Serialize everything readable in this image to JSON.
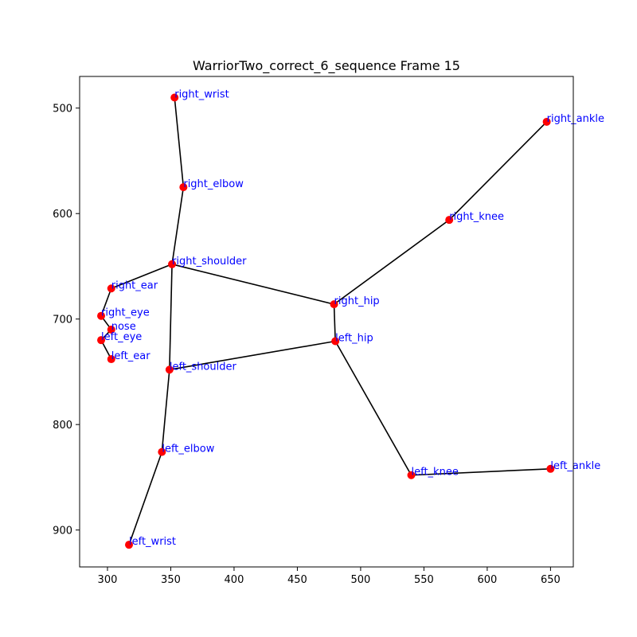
{
  "chart_data": {
    "type": "scatter",
    "title": "WarriorTwo_correct_6_sequence Frame 15",
    "xlabel": "",
    "ylabel": "",
    "xlim": [
      278,
      668
    ],
    "ylim": [
      935,
      470
    ],
    "y_inverted": true,
    "grid": false,
    "x_ticks": [
      300,
      350,
      400,
      450,
      500,
      550,
      600,
      650
    ],
    "y_ticks": [
      500,
      600,
      700,
      800,
      900
    ],
    "point_color": "#ff0000",
    "line_color": "#000000",
    "label_color": "#0000ff",
    "points": [
      {
        "name": "right_wrist",
        "x": 353,
        "y": 490
      },
      {
        "name": "right_ankle",
        "x": 647,
        "y": 513
      },
      {
        "name": "right_elbow",
        "x": 360,
        "y": 575
      },
      {
        "name": "right_knee",
        "x": 570,
        "y": 606
      },
      {
        "name": "right_shoulder",
        "x": 351,
        "y": 648
      },
      {
        "name": "right_ear",
        "x": 303,
        "y": 671
      },
      {
        "name": "right_hip",
        "x": 479,
        "y": 686
      },
      {
        "name": "right_eye",
        "x": 295,
        "y": 697
      },
      {
        "name": "nose",
        "x": 303,
        "y": 710
      },
      {
        "name": "left_eye",
        "x": 295,
        "y": 720
      },
      {
        "name": "left_hip",
        "x": 480,
        "y": 721
      },
      {
        "name": "left_ear",
        "x": 303,
        "y": 738
      },
      {
        "name": "left_shoulder",
        "x": 349,
        "y": 748
      },
      {
        "name": "left_elbow",
        "x": 343,
        "y": 826
      },
      {
        "name": "left_knee",
        "x": 540,
        "y": 848
      },
      {
        "name": "left_ankle",
        "x": 650,
        "y": 842
      },
      {
        "name": "left_wrist",
        "x": 317,
        "y": 914
      }
    ],
    "connections": [
      [
        "right_wrist",
        "right_elbow"
      ],
      [
        "right_elbow",
        "right_shoulder"
      ],
      [
        "right_shoulder",
        "left_shoulder"
      ],
      [
        "left_shoulder",
        "left_elbow"
      ],
      [
        "left_elbow",
        "left_wrist"
      ],
      [
        "right_shoulder",
        "right_hip"
      ],
      [
        "left_shoulder",
        "left_hip"
      ],
      [
        "right_hip",
        "left_hip"
      ],
      [
        "right_hip",
        "right_knee"
      ],
      [
        "right_knee",
        "right_ankle"
      ],
      [
        "left_hip",
        "left_knee"
      ],
      [
        "left_knee",
        "left_ankle"
      ],
      [
        "right_shoulder",
        "right_ear"
      ],
      [
        "right_ear",
        "right_eye"
      ],
      [
        "right_eye",
        "nose"
      ],
      [
        "nose",
        "left_eye"
      ],
      [
        "left_eye",
        "left_ear"
      ]
    ]
  }
}
